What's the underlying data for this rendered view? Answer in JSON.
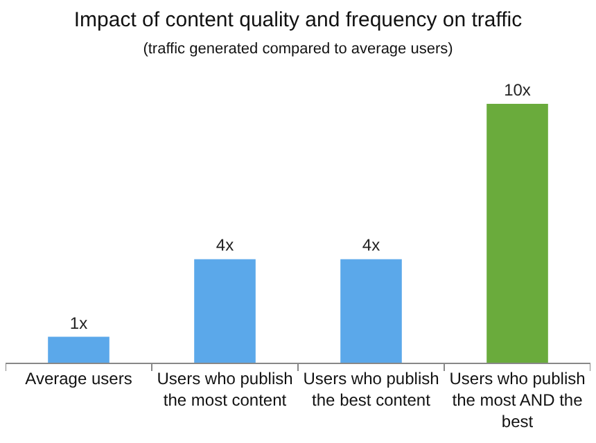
{
  "chart_data": {
    "type": "bar",
    "title": "Impact of content quality and frequency on traffic",
    "subtitle": "(traffic generated compared to average users)",
    "categories": [
      "Average users",
      "Users who publish the most content",
      "Users who publish the best content",
      "Users who publish the most AND the best"
    ],
    "values": [
      1,
      4,
      4,
      10
    ],
    "colors": [
      "#5ba8ea",
      "#5ba8ea",
      "#5ba8ea",
      "#6aab3c"
    ],
    "value_labels": [
      "1x",
      "4x",
      "4x",
      "10x"
    ],
    "legend": false
  }
}
